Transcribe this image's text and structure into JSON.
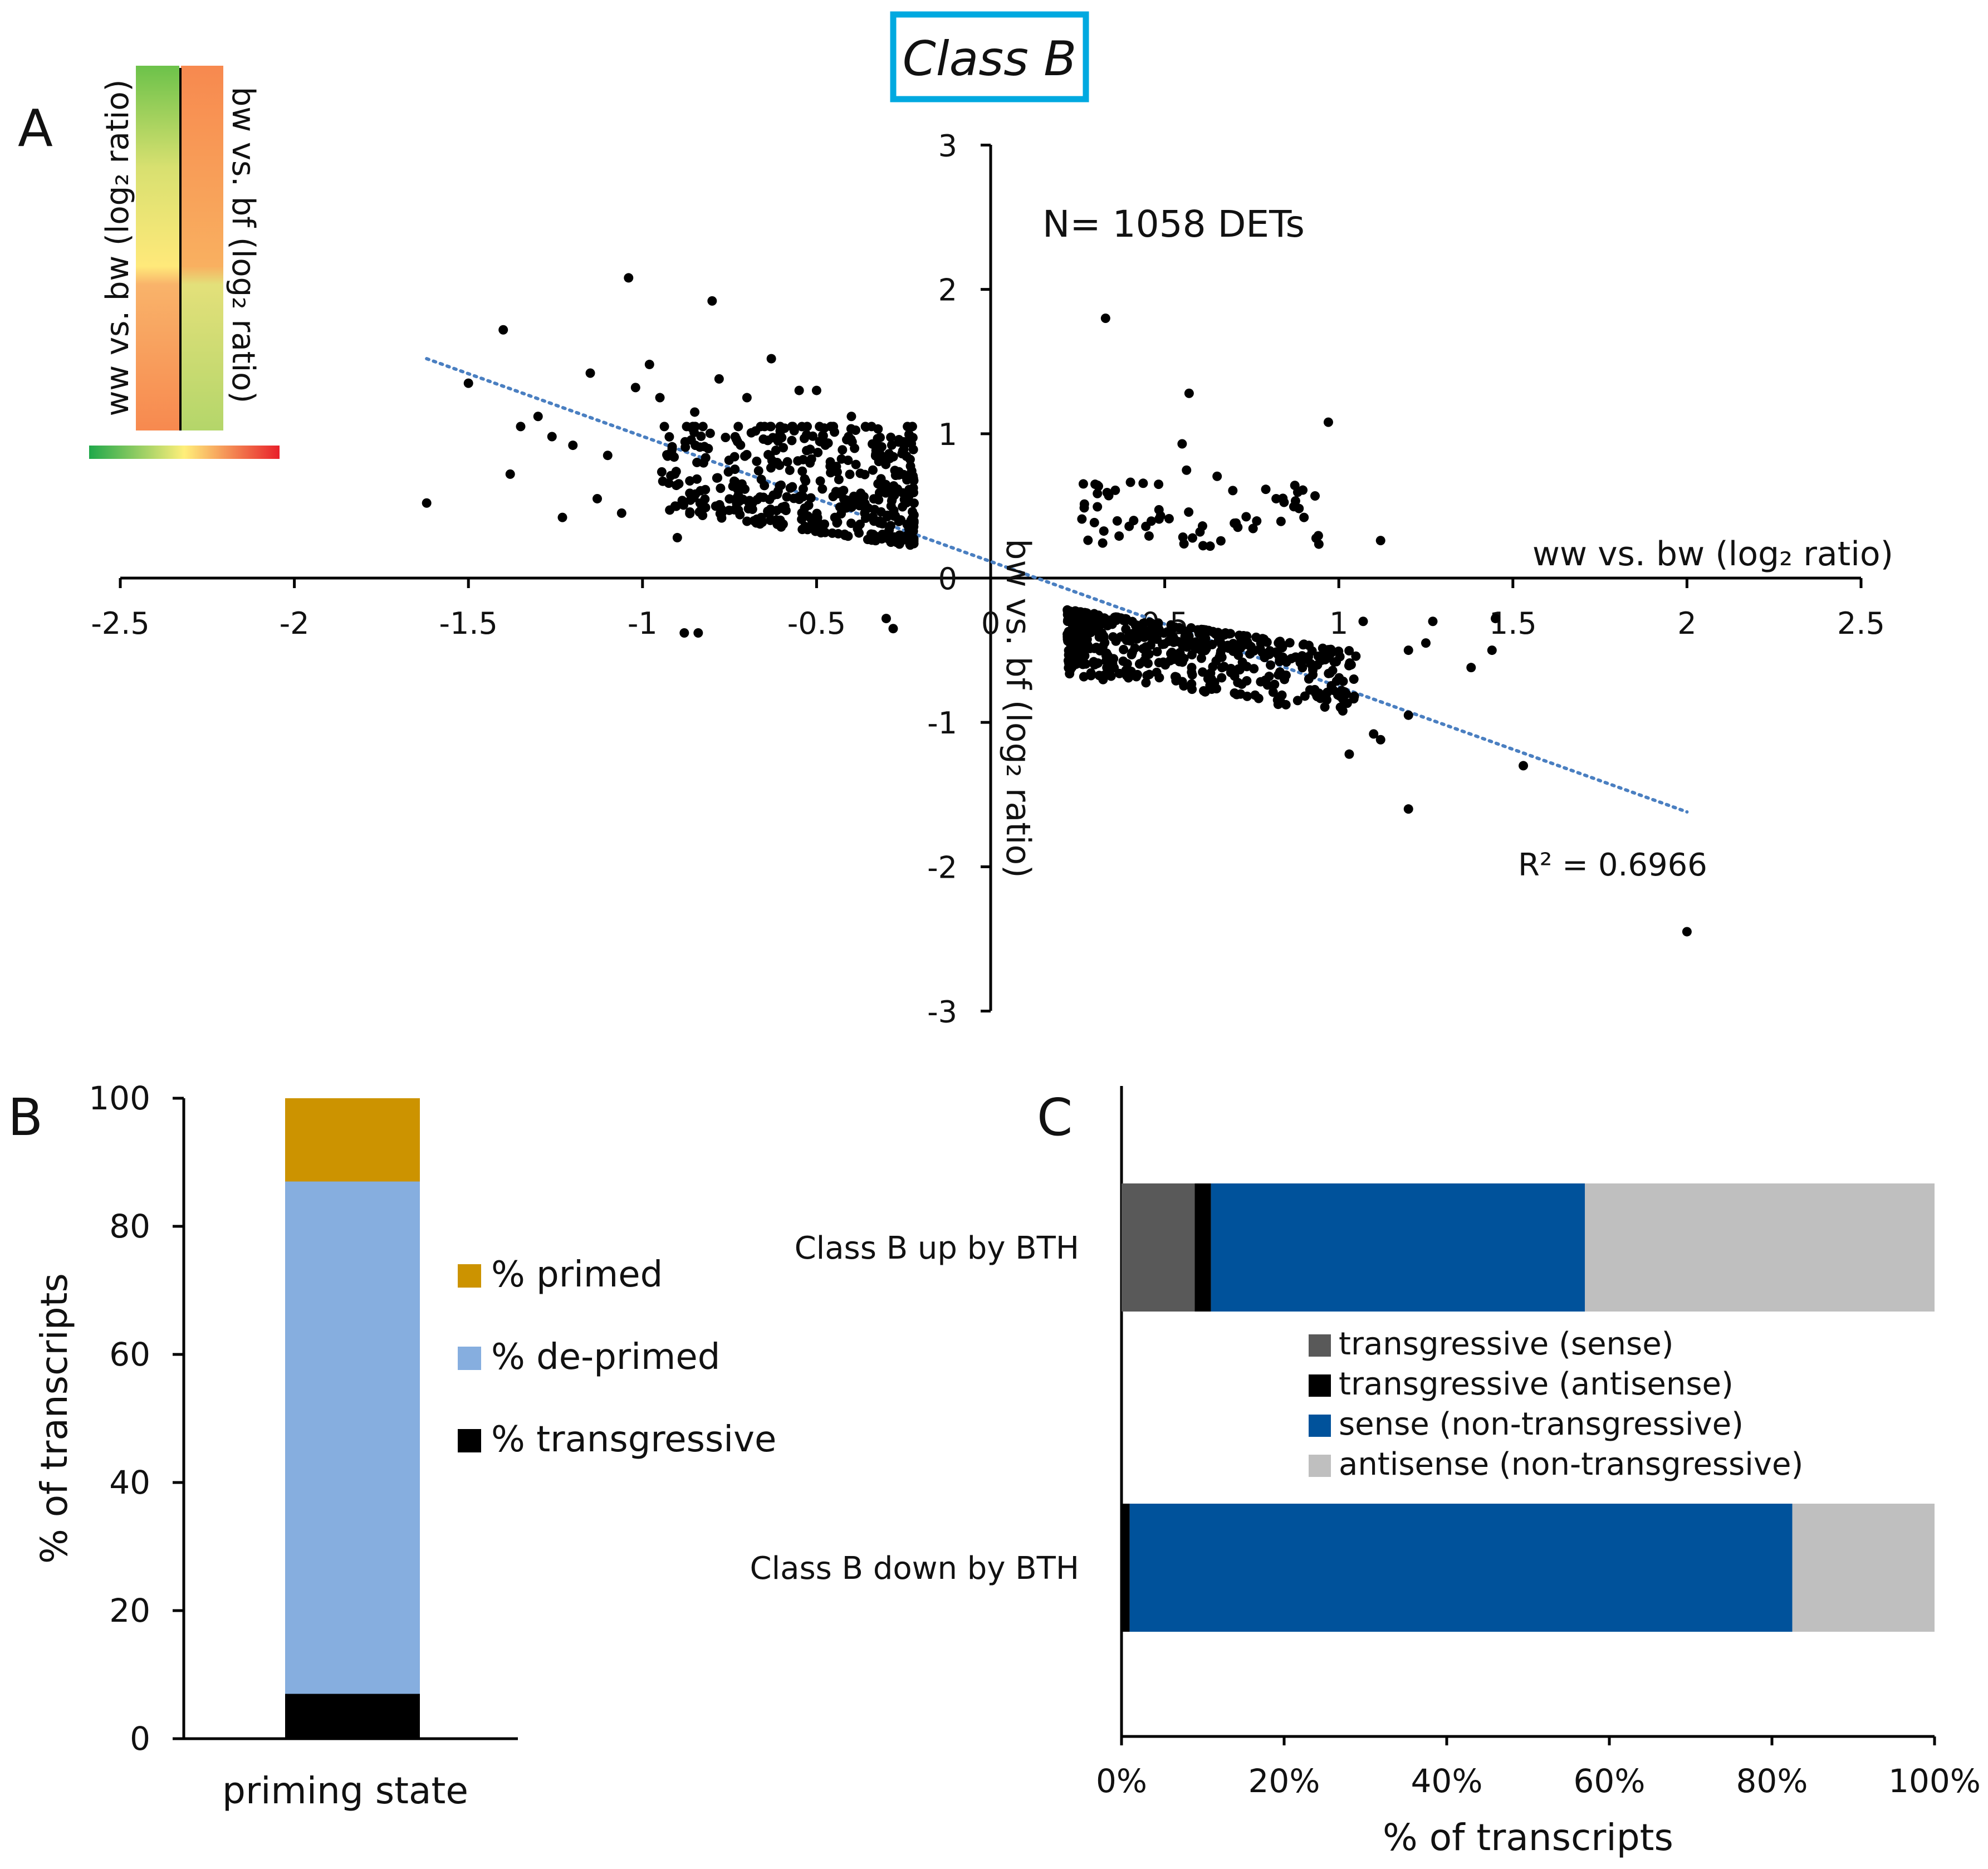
{
  "header": {
    "title": "Class B",
    "border_color": "#00a9e0"
  },
  "panels": {
    "a": "A",
    "b": "B",
    "c": "C"
  },
  "legend_a": {
    "left_label": "ww vs. bw (log₂ ratio)",
    "right_label": "bw vs. bf (log₂ ratio)"
  },
  "chart_data": [
    {
      "id": "A",
      "type": "scatter",
      "title": "",
      "annotation": "N= 1058 DETs",
      "xlabel": "ww vs. bw (log₂ ratio)",
      "ylabel": "bw vs. bf (log₂ ratio)",
      "xlim": [
        -2.5,
        2.5
      ],
      "ylim": [
        -3,
        3
      ],
      "xticks": [
        "-2.5",
        "-2",
        "-1.5",
        "-1",
        "-0.5",
        "0",
        "0.5",
        "1",
        "1.5",
        "2",
        "2.5"
      ],
      "yticks": [
        "-3",
        "-2",
        "-1",
        "0",
        "1",
        "2",
        "3"
      ],
      "trendline": {
        "x": [
          -1.62,
          2.0
        ],
        "y": [
          1.52,
          -1.62
        ],
        "r2_label": "R² = 0.6966",
        "color": "#4a7fc1"
      },
      "clusters": [
        {
          "region": "x<0,y>0",
          "x_range": [
            -0.95,
            -0.22
          ],
          "y_range": [
            0.22,
            1.05
          ],
          "approx_points": 420
        },
        {
          "region": "x>0,y<0",
          "x_range": [
            0.22,
            1.05
          ],
          "y_range": [
            -0.95,
            -0.22
          ],
          "approx_points": 500
        },
        {
          "region": "x>0,y>0",
          "x_range": [
            0.25,
            0.95
          ],
          "y_range": [
            0.22,
            0.75
          ],
          "approx_points": 60
        }
      ],
      "points": [
        [
          -1.62,
          0.52
        ],
        [
          -1.5,
          1.35
        ],
        [
          -1.4,
          1.72
        ],
        [
          -1.38,
          0.72
        ],
        [
          -1.35,
          1.05
        ],
        [
          -1.3,
          1.12
        ],
        [
          -1.26,
          0.98
        ],
        [
          -1.23,
          0.42
        ],
        [
          -1.2,
          0.92
        ],
        [
          -1.15,
          1.42
        ],
        [
          -1.13,
          0.55
        ],
        [
          -1.1,
          0.85
        ],
        [
          -1.06,
          0.45
        ],
        [
          -1.04,
          2.08
        ],
        [
          -1.02,
          1.32
        ],
        [
          -0.98,
          1.48
        ],
        [
          -0.95,
          1.25
        ],
        [
          -0.9,
          0.28
        ],
        [
          -0.85,
          1.15
        ],
        [
          -0.8,
          1.92
        ],
        [
          -0.78,
          1.38
        ],
        [
          -0.7,
          1.25
        ],
        [
          -0.63,
          1.52
        ],
        [
          -0.55,
          1.3
        ],
        [
          -0.5,
          1.3
        ],
        [
          -0.4,
          1.12
        ],
        [
          -0.88,
          -0.38
        ],
        [
          -0.84,
          -0.38
        ],
        [
          -0.3,
          -0.28
        ],
        [
          -0.28,
          -0.35
        ],
        [
          0.33,
          1.8
        ],
        [
          0.57,
          1.28
        ],
        [
          0.97,
          1.08
        ],
        [
          0.55,
          0.93
        ],
        [
          0.82,
          0.55
        ],
        [
          0.9,
          0.42
        ],
        [
          0.7,
          0.38
        ],
        [
          0.3,
          0.65
        ],
        [
          1.12,
          0.26
        ],
        [
          1.07,
          -0.3
        ],
        [
          1.2,
          -0.5
        ],
        [
          1.27,
          -0.3
        ],
        [
          1.25,
          -0.45
        ],
        [
          1.38,
          -0.62
        ],
        [
          1.44,
          -0.5
        ],
        [
          1.45,
          -0.28
        ],
        [
          1.53,
          -1.3
        ],
        [
          1.2,
          -1.6
        ],
        [
          1.1,
          -1.08
        ],
        [
          1.12,
          -1.12
        ],
        [
          1.03,
          -1.22
        ],
        [
          1.2,
          -0.95
        ],
        [
          2.0,
          -2.45
        ]
      ]
    },
    {
      "id": "B",
      "type": "bar",
      "stacked": true,
      "categories": [
        "priming state"
      ],
      "xlabel": "priming state",
      "ylabel": "% of transcripts",
      "ylim": [
        0,
        100
      ],
      "yticks": [
        "0",
        "20",
        "40",
        "60",
        "80",
        "100"
      ],
      "series": [
        {
          "name": "% transgressive",
          "values": [
            7
          ],
          "color": "#000000"
        },
        {
          "name": "% de-primed",
          "values": [
            80
          ],
          "color": "#86aedf"
        },
        {
          "name": "% primed",
          "values": [
            13
          ],
          "color": "#cc9300"
        }
      ],
      "legend_order": [
        "% primed",
        "% de-primed",
        "% transgressive"
      ]
    },
    {
      "id": "C",
      "type": "bar",
      "orientation": "horizontal",
      "stacked": true,
      "percent": true,
      "categories": [
        "Class B up by BTH",
        "Class B down by BTH"
      ],
      "xlabel": "% of transcripts",
      "xlim": [
        0,
        100
      ],
      "xticks": [
        "0%",
        "20%",
        "40%",
        "60%",
        "80%",
        "100%"
      ],
      "series": [
        {
          "name": "transgressive (sense)",
          "values": [
            9,
            0
          ],
          "color": "#595959"
        },
        {
          "name": "transgressive (antisense)",
          "values": [
            2,
            1
          ],
          "color": "#000000"
        },
        {
          "name": "sense (non-transgressive)",
          "values": [
            46,
            81.5
          ],
          "color": "#00529b"
        },
        {
          "name": "antisense (non-transgressive)",
          "values": [
            43,
            17.5
          ],
          "color": "#bfbfbf"
        }
      ]
    }
  ]
}
